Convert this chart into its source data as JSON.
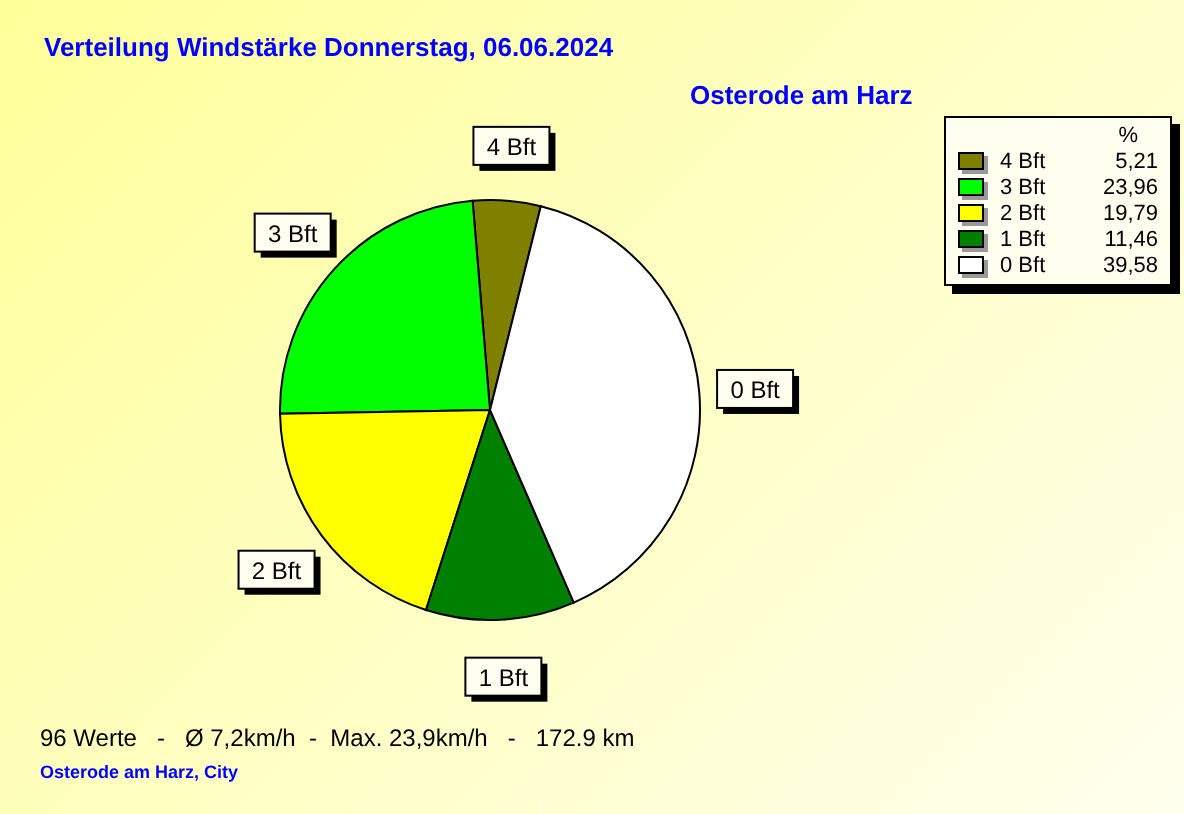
{
  "chart_data": {
    "type": "pie",
    "title": "Verteilung Windstärke  Donnerstag, 06.06.2024",
    "subtitle": "Osterode am Harz",
    "legend_title": "%",
    "categories": [
      "4 Bft",
      "3 Bft",
      "2 Bft",
      "1 Bft",
      "0 Bft"
    ],
    "values": [
      5.21,
      23.96,
      19.79,
      11.46,
      39.58
    ],
    "value_labels": [
      "5,21",
      "23,96",
      "19,79",
      "11,46",
      "39,58"
    ],
    "colors": [
      "#808000",
      "#00ff00",
      "#ffff00",
      "#008000",
      "#ffffff"
    ],
    "legend": "top right",
    "annotations": [
      "96 Werte   -   Ø 7,2km/h  -  Max. 23,9km/h   -   172.9 km",
      "Osterode am Harz, City"
    ]
  }
}
